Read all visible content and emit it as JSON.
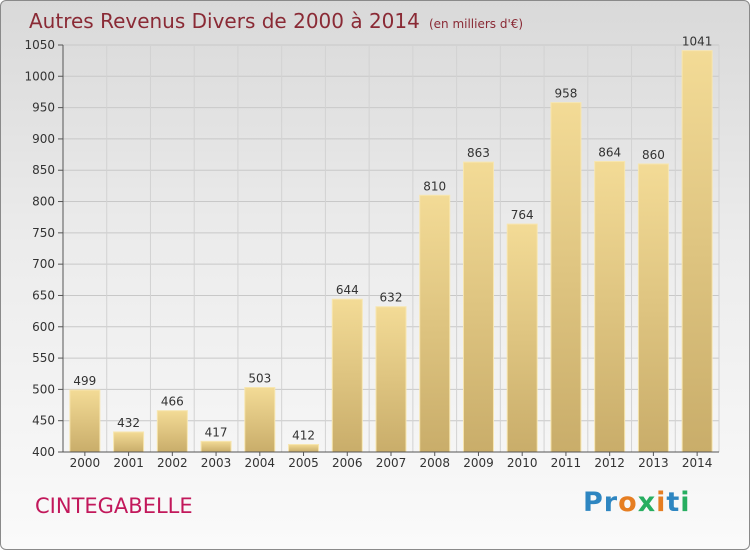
{
  "chart_data": {
    "type": "bar",
    "title": "Autres Revenus Divers de 2000 à 2014",
    "subtitle": "(en milliers d'€)",
    "categories": [
      "2000",
      "2001",
      "2002",
      "2003",
      "2004",
      "2005",
      "2006",
      "2007",
      "2008",
      "2009",
      "2010",
      "2011",
      "2012",
      "2013",
      "2014"
    ],
    "values": [
      499,
      432,
      466,
      417,
      503,
      412,
      644,
      632,
      810,
      863,
      764,
      958,
      864,
      860,
      1041
    ],
    "ylim": [
      400,
      1050
    ],
    "yticks": [
      400,
      450,
      500,
      550,
      600,
      650,
      700,
      750,
      800,
      850,
      900,
      950,
      1000,
      1050
    ],
    "grid": true,
    "bar_color": "#f0d48a"
  },
  "commune": "CINTEGABELLE",
  "brand": {
    "letters": [
      {
        "ch": "P",
        "color": "#2e86c1"
      },
      {
        "ch": "r",
        "color": "#2e86c1"
      },
      {
        "ch": "o",
        "color": "#e67e22"
      },
      {
        "ch": "x",
        "color": "#27ae60"
      },
      {
        "ch": "i",
        "color": "#e67e22"
      },
      {
        "ch": "t",
        "color": "#2e86c1"
      },
      {
        "ch": "i",
        "color": "#27ae60"
      }
    ]
  }
}
